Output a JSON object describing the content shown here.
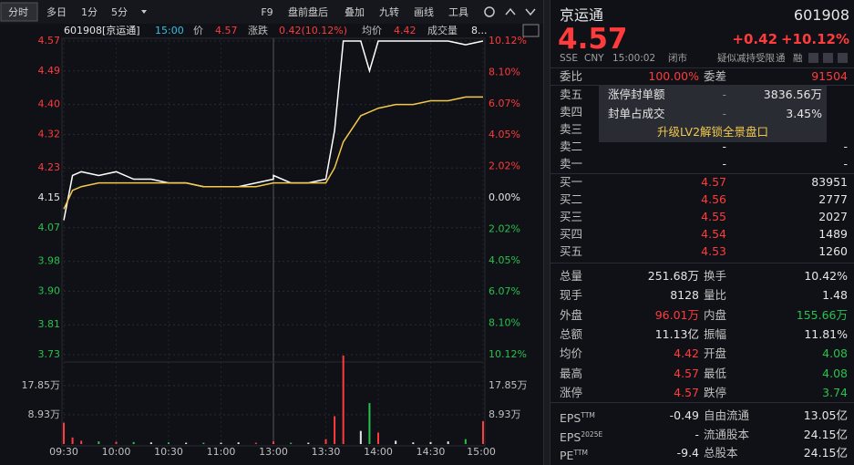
{
  "toolbar": [
    "分时",
    "多日",
    "1分",
    "5分",
    "F9",
    "盘前盘后",
    "叠加",
    "九转",
    "画线",
    "工具"
  ],
  "chart_header": {
    "code": "601908[京运通]",
    "time": "15:00",
    "change_label": "涨跌",
    "change": "0.42(10.12%)",
    "volume_text": "8..."
  },
  "chart_data": [
    {
      "type": "line",
      "x": [
        "09:30",
        "09:35",
        "09:40",
        "09:50",
        "10:00",
        "10:10",
        "10:20",
        "10:30",
        "10:40",
        "10:50",
        "11:00",
        "11:10",
        "11:20",
        "11:30",
        "13:00",
        "13:10",
        "13:20",
        "13:30",
        "13:35",
        "13:40",
        "13:50",
        "13:55",
        "14:00",
        "14:10",
        "14:20",
        "14:30",
        "14:40",
        "14:50",
        "15:00"
      ],
      "series": [
        {
          "name": "价",
          "color": "#ffffff",
          "values": [
            4.09,
            4.21,
            4.22,
            4.21,
            4.22,
            4.2,
            4.2,
            4.19,
            4.19,
            4.18,
            4.18,
            4.18,
            4.19,
            4.2,
            4.21,
            4.19,
            4.19,
            4.2,
            4.33,
            4.57,
            4.57,
            4.49,
            4.57,
            4.57,
            4.57,
            4.57,
            4.57,
            4.56,
            4.57
          ]
        },
        {
          "name": "均价",
          "color": "#f2c94c",
          "values": [
            4.12,
            4.17,
            4.18,
            4.19,
            4.19,
            4.19,
            4.19,
            4.19,
            4.19,
            4.18,
            4.18,
            4.18,
            4.18,
            4.19,
            4.19,
            4.19,
            4.19,
            4.19,
            4.23,
            4.3,
            4.37,
            4.38,
            4.39,
            4.4,
            4.4,
            4.41,
            4.41,
            4.42,
            4.42
          ]
        }
      ],
      "ylim": [
        3.73,
        4.57
      ],
      "yticks": [
        4.57,
        4.49,
        {
          "value": 4.4,
          "label": "4.40"
        },
        4.32,
        4.23,
        4.15,
        4.07,
        3.98,
        {
          "value": 3.9,
          "label": "3.90"
        },
        3.81,
        3.73
      ],
      "y2lim": [
        -10.12,
        10.12
      ],
      "y2ticks": [
        {
          "value": 10.12,
          "label": "10.12%"
        },
        {
          "value": 8.1,
          "label": "8.10%"
        },
        {
          "value": 6.07,
          "label": "6.07%"
        },
        {
          "value": 4.05,
          "label": "4.05%"
        },
        {
          "value": 2.02,
          "label": "2.02%"
        },
        {
          "value": 0,
          "label": "0.00%"
        },
        {
          "value": -2.02,
          "label": "2.02%"
        },
        {
          "value": -4.05,
          "label": "4.05%"
        },
        {
          "value": -6.07,
          "label": "6.07%"
        },
        {
          "value": -8.1,
          "label": "8.10%"
        },
        {
          "value": -10.12,
          "label": "10.12%"
        }
      ],
      "xticks": [
        "09:30",
        "10:00",
        "10:30",
        "11:00",
        "13:00",
        "13:30",
        "14:00",
        "14:30",
        "15:00"
      ],
      "grid": true
    },
    {
      "type": "bar",
      "x": [
        "09:30",
        "09:35",
        "09:40",
        "09:50",
        "10:00",
        "10:10",
        "10:20",
        "10:30",
        "10:40",
        "10:50",
        "11:00",
        "11:10",
        "11:20",
        "11:30",
        "13:00",
        "13:10",
        "13:20",
        "13:30",
        "13:35",
        "13:40",
        "13:50",
        "13:55",
        "14:00",
        "14:10",
        "14:20",
        "14:30",
        "14:40",
        "14:50",
        "15:00"
      ],
      "series": [
        {
          "name": "成交量",
          "values": [
            6.5,
            2.0,
            1.0,
            0.8,
            0.7,
            0.6,
            0.5,
            0.5,
            0.4,
            0.4,
            0.4,
            0.5,
            0.4,
            0.5,
            0.8,
            0.4,
            0.4,
            1.5,
            8.5,
            27,
            4.0,
            12.5,
            3.5,
            1.0,
            0.5,
            0.6,
            0.8,
            1.5,
            7.0
          ]
        }
      ],
      "ylim": [
        0,
        27
      ],
      "yticks": [
        {
          "value": 17.85,
          "label": "17.85万"
        },
        {
          "value": 8.93,
          "label": "8.93万"
        }
      ],
      "y2lim": [
        0,
        27
      ],
      "y2ticks": [
        {
          "value": 17.85,
          "label": "17.85万"
        },
        {
          "value": 8.93,
          "label": "8.93万"
        }
      ]
    }
  ],
  "quote": {
    "name": "京运通",
    "code": "601908",
    "price": "4.57",
    "change": "+0.42",
    "change_pct": "+10.12%",
    "info": [
      "SSE",
      "CNY",
      "15:00:02",
      "闭市",
      "疑似减持受限",
      "通",
      "融"
    ],
    "ratio": [
      {
        "label": "委比",
        "value": "100.00%"
      },
      {
        "label": "委差",
        "value": "91504"
      }
    ],
    "sell": [
      {
        "label": "卖五"
      },
      {
        "label": "卖四"
      },
      {
        "label": "卖三"
      },
      {
        "label": "卖二",
        "price": "-",
        "volume": "-"
      },
      {
        "label": "卖一",
        "price": "-",
        "volume": "-"
      }
    ],
    "limit_box": {
      "rows": [
        [
          "涨停封单额",
          "-",
          "3836.56万"
        ],
        [
          "封单占成交",
          "-",
          "3.45%"
        ]
      ],
      "upgrade": "升级LV2解锁全景盘口"
    },
    "buy": [
      {
        "label": "买一",
        "price": "4.57",
        "volume": "83951"
      },
      {
        "label": "买二",
        "price": "4.56",
        "volume": "2777"
      },
      {
        "label": "买三",
        "price": "4.55",
        "volume": "2027"
      },
      {
        "label": "买四",
        "price": "4.54",
        "volume": "1489"
      },
      {
        "label": "买五",
        "price": "4.53",
        "volume": "1260"
      }
    ],
    "stats": [
      [
        {
          "label": "总量",
          "value": "251.68万",
          "color": "#e6e6e6"
        },
        {
          "label": "换手",
          "value": "10.42%",
          "color": "#e6e6e6"
        }
      ],
      [
        {
          "label": "现手",
          "value": "8128",
          "color": "#e6e6e6"
        },
        {
          "label": "量比",
          "value": "1.48",
          "color": "#e6e6e6"
        }
      ],
      [
        {
          "label": "外盘",
          "value": "96.01万",
          "color": "#ff3b3b"
        },
        {
          "label": "内盘",
          "value": "155.66万",
          "color": "#27c24c"
        }
      ],
      [
        {
          "label": "总额",
          "value": "11.13亿",
          "color": "#e6e6e6"
        },
        {
          "label": "振幅",
          "value": "11.81%",
          "color": "#e6e6e6"
        }
      ],
      [
        {
          "label": "均价",
          "value": "4.42",
          "color": "#ff3b3b"
        },
        {
          "label": "开盘",
          "value": "4.08",
          "color": "#27c24c"
        }
      ],
      [
        {
          "label": "最高",
          "value": "4.57",
          "color": "#ff3b3b"
        },
        {
          "label": "最低",
          "value": "4.08",
          "color": "#27c24c"
        }
      ],
      [
        {
          "label": "涨停",
          "value": "4.57",
          "color": "#ff3b3b"
        },
        {
          "label": "跌停",
          "value": "3.74",
          "color": "#27c24c"
        }
      ]
    ],
    "fundamentals": [
      {
        "label": "EPS",
        "sup": "TTM",
        "value": "-0.49",
        "label2": "自由流通",
        "value2": "13.05亿"
      },
      {
        "label": "EPS",
        "sup": "2025E",
        "value": "-",
        "label2": "流通股本",
        "value2": "24.15亿"
      },
      {
        "label": "PE",
        "sup": "TTM",
        "value": "-9.4",
        "label2": "总股本",
        "value2": "24.15亿"
      }
    ]
  }
}
